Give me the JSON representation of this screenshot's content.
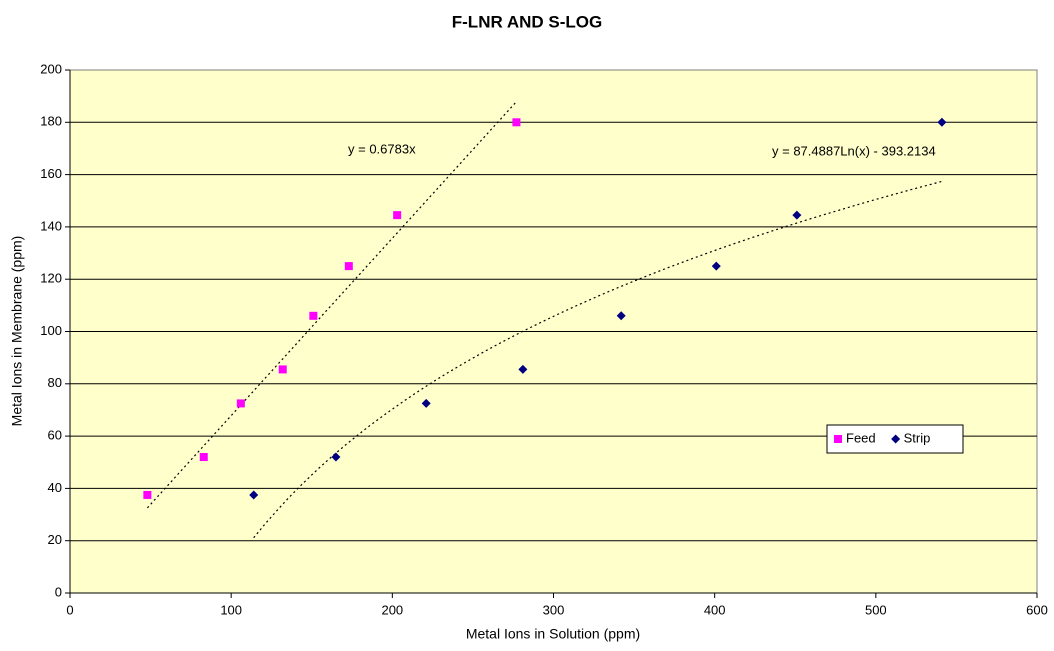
{
  "chart_data": {
    "type": "scatter",
    "title": "F-LNR AND S-LOG",
    "x_label": "Metal Ions in Solution (ppm)",
    "y_label": "Metal Ions in Membrane (ppm)",
    "xlim": [
      0,
      600
    ],
    "xticks": [
      0,
      100,
      200,
      300,
      400,
      500,
      600
    ],
    "ylim": [
      0,
      200
    ],
    "yticks": [
      0,
      20,
      40,
      60,
      80,
      100,
      120,
      140,
      160,
      180,
      200
    ],
    "grid": true,
    "legend": "right",
    "series": [
      {
        "name": "Feed",
        "color": "#ff00ff",
        "marker": "square",
        "x": [
          48,
          83,
          106,
          132,
          151,
          173,
          203,
          277
        ],
        "values": [
          37.5,
          52,
          72.5,
          85.5,
          106,
          125,
          144.5,
          180
        ]
      },
      {
        "name": "Strip",
        "color": "#000080",
        "marker": "diamond",
        "x": [
          114,
          165,
          221,
          281,
          342,
          401,
          451,
          541
        ],
        "values": [
          37.5,
          52,
          72.5,
          85.5,
          106,
          125,
          144.5,
          180
        ]
      }
    ],
    "trendlines": [
      {
        "kind": "linear",
        "label": "y = 0.6783x",
        "slope": 0.6783,
        "x_range": [
          48,
          277
        ]
      },
      {
        "kind": "log",
        "label": "y = 87.4887Ln(x) - 393.2134",
        "a": 87.4887,
        "b": -393.2134,
        "x_range": [
          114,
          541
        ]
      }
    ]
  }
}
